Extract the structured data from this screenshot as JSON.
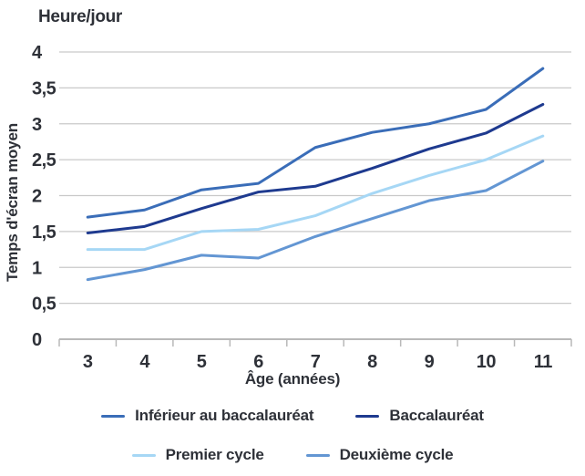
{
  "title": "Heure/jour",
  "y_axis_label": "Temps d'écran moyen",
  "x_axis_label": "Âge (années)",
  "colors": {
    "background": "#ffffff",
    "text": "#2e3138",
    "grid": "#c9c9c9",
    "axis": "#b9b9b9"
  },
  "chart_data": {
    "type": "line",
    "title": "Heure/jour",
    "xlabel": "Âge (années)",
    "ylabel": "Temps d'écran moyen",
    "x": [
      3,
      4,
      5,
      6,
      7,
      8,
      9,
      10,
      11
    ],
    "x_tick_labels": [
      "3",
      "4",
      "5",
      "6",
      "7",
      "8",
      "9",
      "10",
      "11"
    ],
    "ylim": [
      0,
      4
    ],
    "y_ticks": [
      0,
      0.5,
      1,
      1.5,
      2,
      2.5,
      3,
      3.5,
      4
    ],
    "y_tick_labels": [
      "0",
      "0,5",
      "1",
      "1,5",
      "2",
      "2,5",
      "3",
      "3,5",
      "4"
    ],
    "grid": "horizontal",
    "legend_position": "bottom",
    "series": [
      {
        "name": "Inférieur au baccalauréat",
        "color": "#3a6db8",
        "values": [
          1.7,
          1.8,
          2.08,
          2.17,
          2.67,
          2.88,
          3.0,
          3.2,
          3.77
        ]
      },
      {
        "name": "Baccalauréat",
        "color": "#1e3a8f",
        "values": [
          1.48,
          1.57,
          1.82,
          2.05,
          2.13,
          2.38,
          2.65,
          2.87,
          3.27
        ]
      },
      {
        "name": "Premier cycle",
        "color": "#a6d7f5",
        "values": [
          1.25,
          1.25,
          1.5,
          1.53,
          1.72,
          2.03,
          2.28,
          2.5,
          2.83
        ]
      },
      {
        "name": "Deuxième cycle",
        "color": "#6396d3",
        "values": [
          0.83,
          0.97,
          1.17,
          1.13,
          1.43,
          1.68,
          1.93,
          2.07,
          2.48
        ]
      }
    ]
  }
}
